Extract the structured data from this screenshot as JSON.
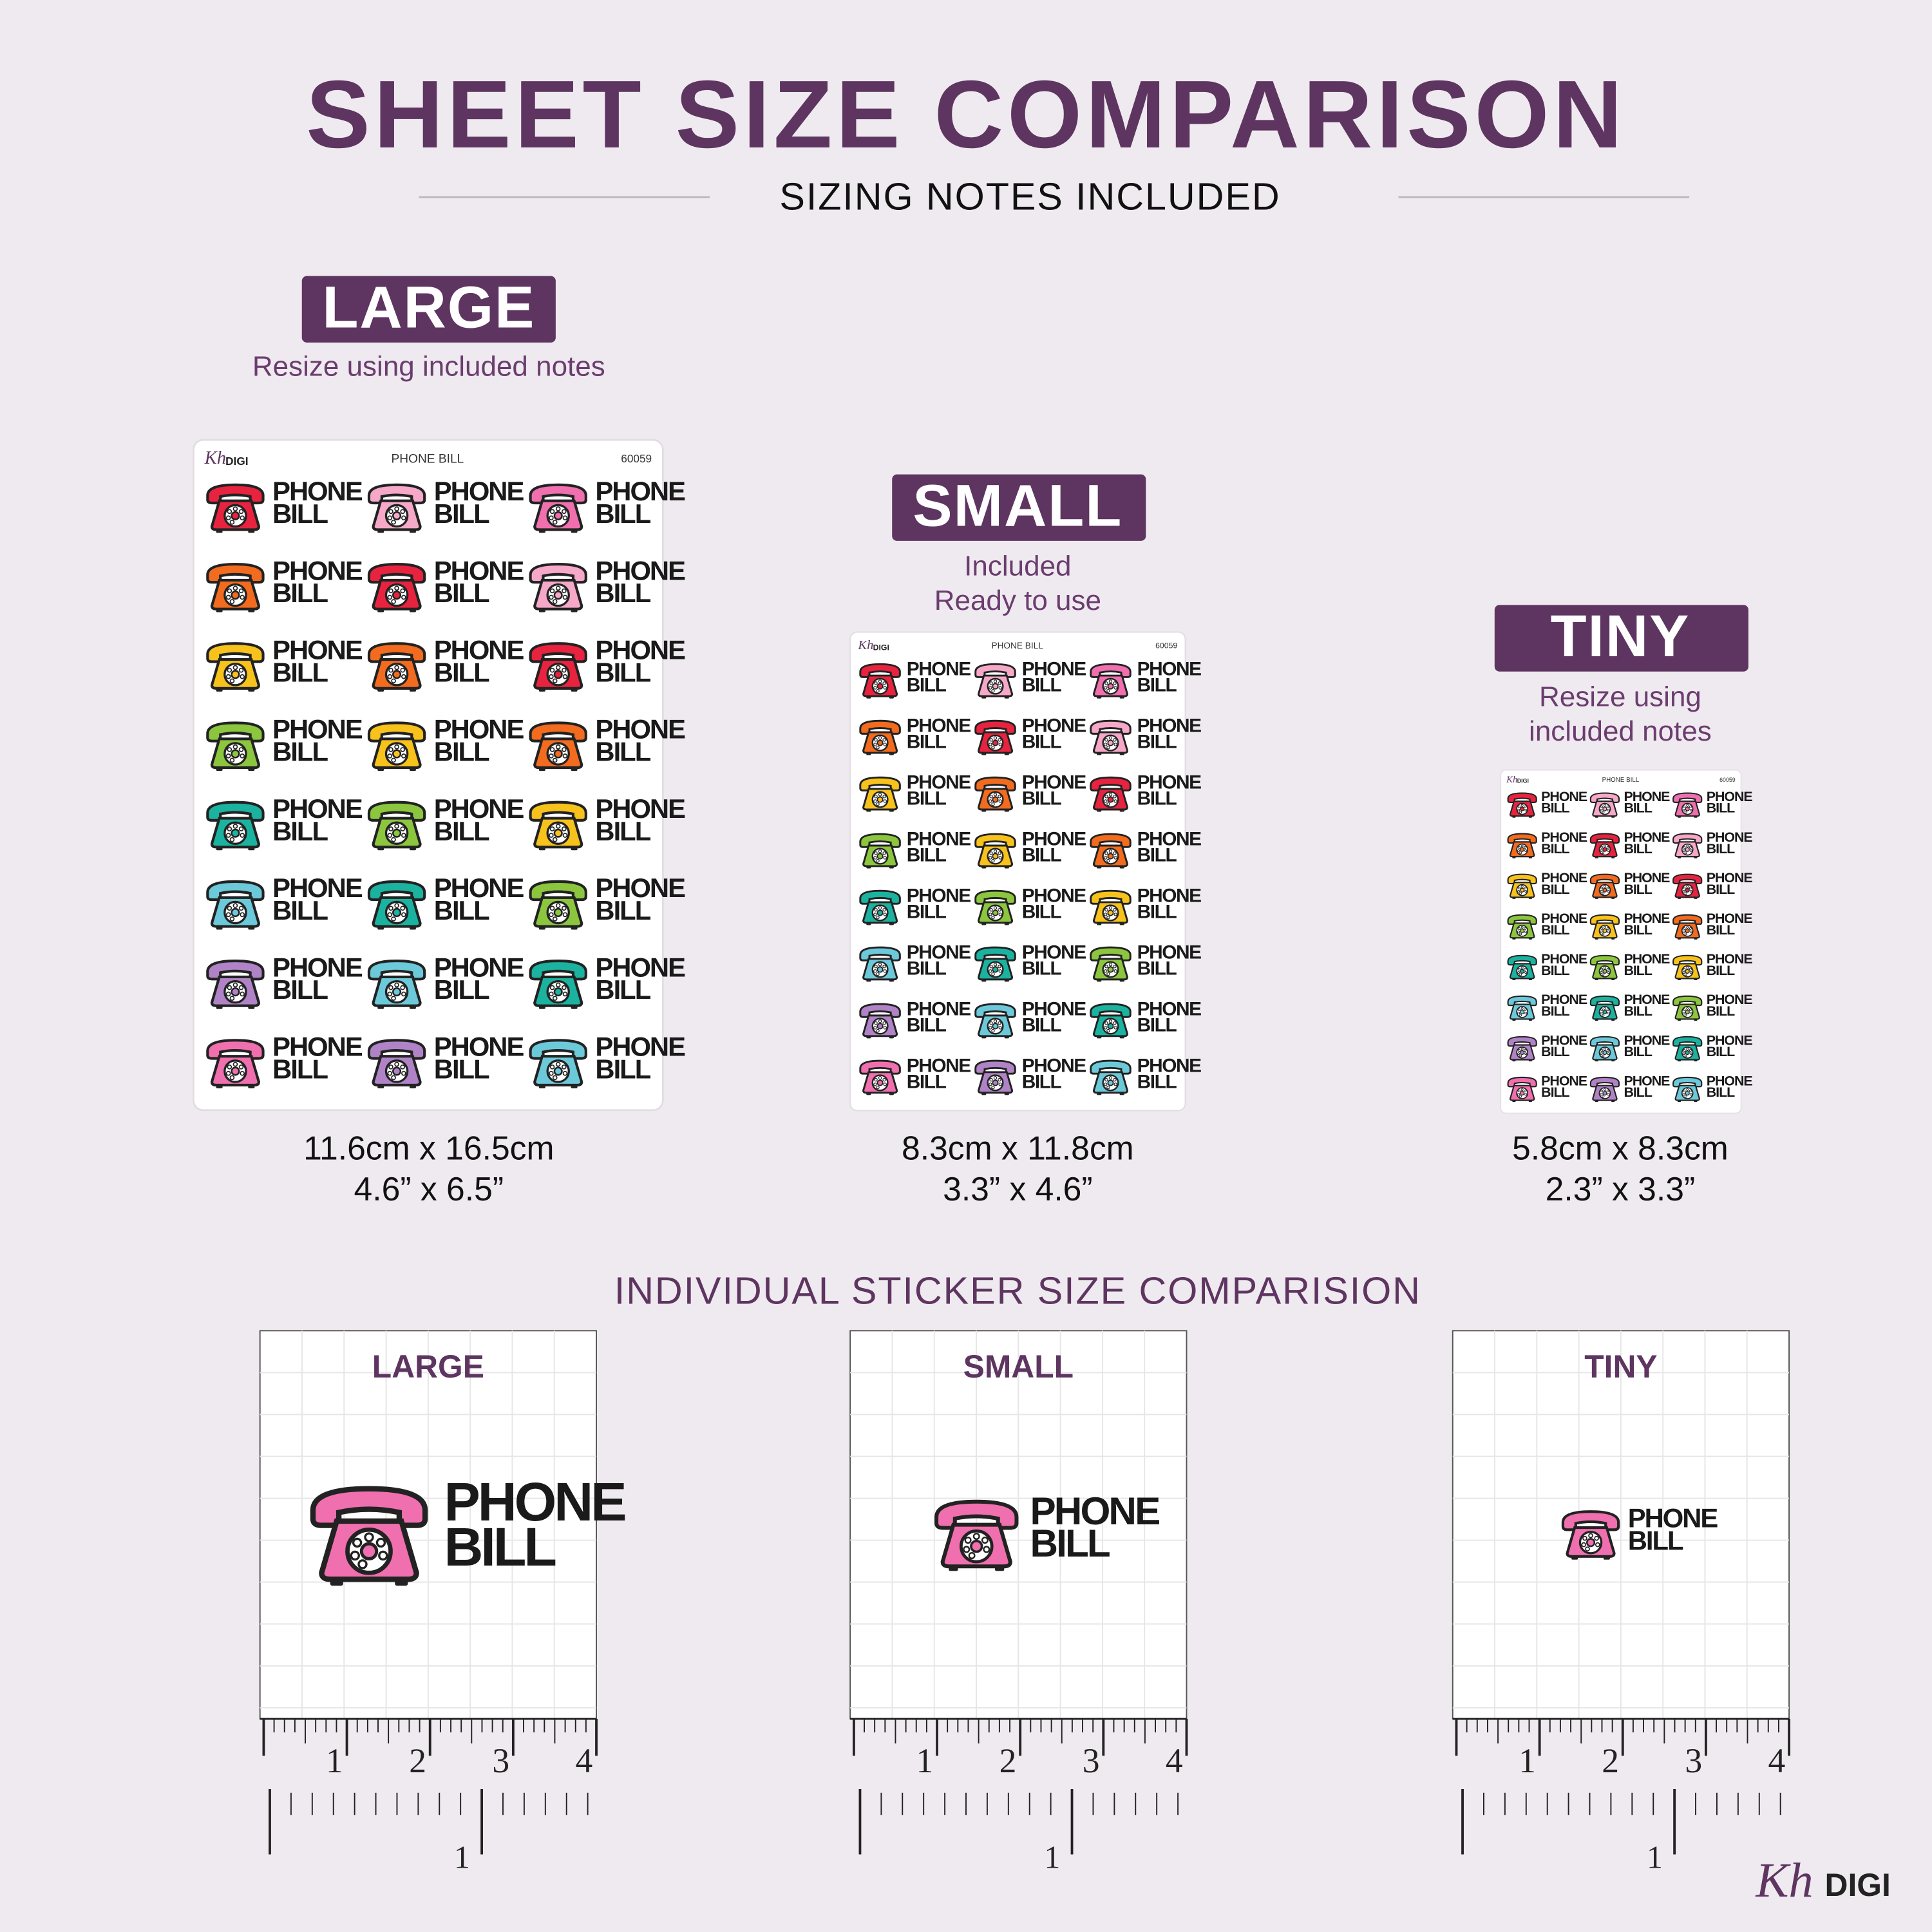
{
  "header": {
    "title": "SHEET SIZE COMPARISON",
    "subtitle": "SIZING NOTES INCLUDED"
  },
  "sheet": {
    "brand_mark": "Kh",
    "brand": "DIGI",
    "title": "PHONE BILL",
    "code": "60059"
  },
  "sticker": {
    "line1": "PHONE",
    "line2": "BILL"
  },
  "sizes": [
    {
      "label": "LARGE",
      "note": [
        "Resize using included notes"
      ],
      "cm": "11.6cm x 16.5cm",
      "inches": "4.6” x 6.5”"
    },
    {
      "label": "SMALL",
      "note": [
        "Included",
        "Ready to use"
      ],
      "cm": "8.3cm x 11.8cm",
      "inches": "3.3” x 4.6”"
    },
    {
      "label": "TINY",
      "note": [
        "Resize using",
        "included notes"
      ],
      "cm": "5.8cm x 8.3cm",
      "inches": "2.3” x 3.3”"
    }
  ],
  "comparison": {
    "title": "INDIVIDUAL STICKER SIZE COMPARISION",
    "ruler_top_labels": [
      "1",
      "2",
      "3",
      "4"
    ],
    "ruler_bottom_label": "1"
  },
  "footer": {
    "brand_mark": "Kh",
    "brand": "DIGI"
  }
}
